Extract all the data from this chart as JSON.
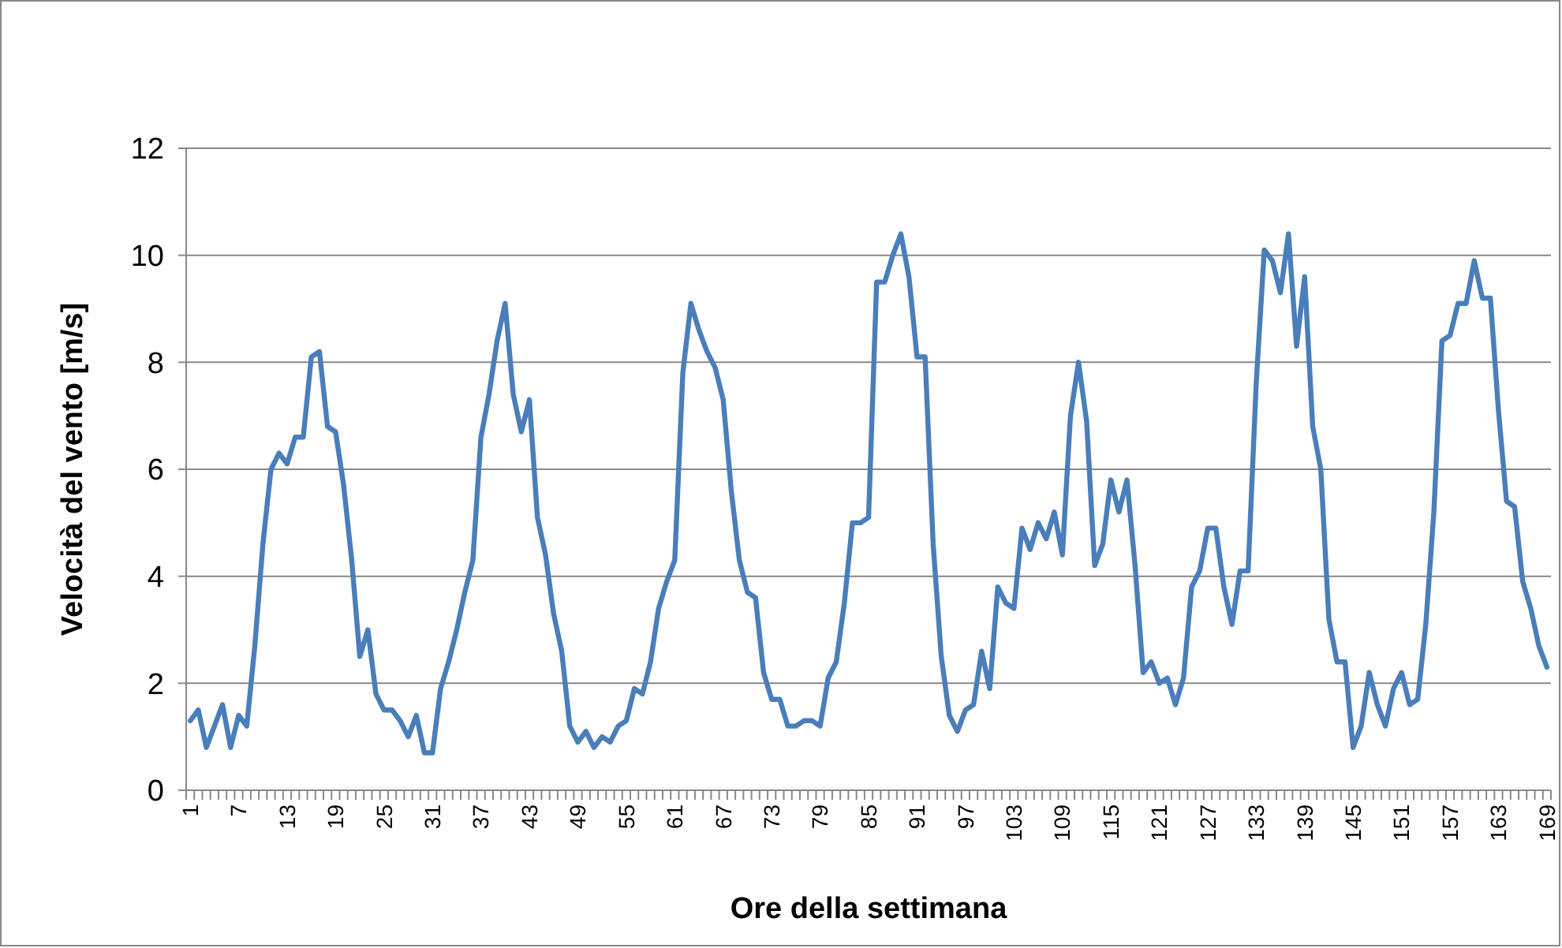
{
  "chart_data": {
    "type": "line",
    "xlabel": "Ore della settimana",
    "ylabel": "Velocità del vento [m/s]",
    "categories": [
      "1",
      null,
      null,
      null,
      null,
      null,
      "7",
      null,
      null,
      null,
      null,
      null,
      "13",
      null,
      null,
      null,
      null,
      null,
      "19",
      null,
      null,
      null,
      null,
      null,
      "25",
      null,
      null,
      null,
      null,
      null,
      "31",
      null,
      null,
      null,
      null,
      null,
      "37",
      null,
      null,
      null,
      null,
      null,
      "43",
      null,
      null,
      null,
      null,
      null,
      "49",
      null,
      null,
      null,
      null,
      null,
      "55",
      null,
      null,
      null,
      null,
      null,
      "61",
      null,
      null,
      null,
      null,
      null,
      "67",
      null,
      null,
      null,
      null,
      null,
      "73",
      null,
      null,
      null,
      null,
      null,
      "79",
      null,
      null,
      null,
      null,
      null,
      "85",
      null,
      null,
      null,
      null,
      null,
      "91",
      null,
      null,
      null,
      null,
      null,
      "97",
      null,
      null,
      null,
      null,
      null,
      "103",
      null,
      null,
      null,
      null,
      null,
      "109",
      null,
      null,
      null,
      null,
      null,
      "115",
      null,
      null,
      null,
      null,
      null,
      "121",
      null,
      null,
      null,
      null,
      null,
      "127",
      null,
      null,
      null,
      null,
      null,
      "133",
      null,
      null,
      null,
      null,
      null,
      "139",
      null,
      null,
      null,
      null,
      null,
      "145",
      null,
      null,
      null,
      null,
      null,
      "151",
      null,
      null,
      null,
      null,
      null,
      "157",
      null,
      null,
      null,
      null,
      null,
      "163",
      null,
      null,
      null,
      null,
      null,
      "169"
    ],
    "series": [
      {
        "color": "#4a7ebb",
        "values": [
          1.3,
          1.5,
          0.8,
          1.2,
          1.6,
          0.8,
          1.4,
          1.2,
          2.7,
          4.6,
          6.0,
          6.3,
          6.1,
          6.6,
          6.6,
          8.1,
          8.2,
          6.8,
          6.7,
          5.7,
          4.3,
          2.5,
          3.0,
          1.8,
          1.5,
          1.5,
          1.3,
          1.0,
          1.4,
          0.7,
          0.7,
          1.9,
          2.4,
          3.0,
          3.7,
          4.3,
          6.6,
          7.4,
          8.4,
          9.1,
          7.4,
          6.7,
          7.3,
          5.1,
          4.4,
          3.3,
          2.6,
          1.2,
          0.9,
          1.1,
          0.8,
          1.0,
          0.9,
          1.2,
          1.3,
          1.9,
          1.8,
          2.4,
          3.4,
          3.9,
          4.3,
          7.8,
          9.1,
          8.6,
          8.2,
          7.9,
          7.3,
          5.6,
          4.3,
          3.7,
          3.6,
          2.2,
          1.7,
          1.7,
          1.2,
          1.2,
          1.3,
          1.3,
          1.2,
          2.1,
          2.4,
          3.5,
          5.0,
          5.0,
          5.1,
          9.5,
          9.5,
          10.0,
          10.4,
          9.6,
          8.1,
          8.1,
          4.6,
          2.5,
          1.4,
          1.1,
          1.5,
          1.6,
          2.6,
          1.9,
          3.8,
          3.5,
          3.4,
          4.9,
          4.5,
          5.0,
          4.7,
          5.2,
          4.4,
          7.0,
          8.0,
          6.9,
          4.2,
          4.6,
          5.8,
          5.2,
          5.8,
          4.2,
          2.2,
          2.4,
          2.0,
          2.1,
          1.6,
          2.1,
          3.8,
          4.1,
          4.9,
          4.9,
          3.8,
          3.1,
          4.1,
          4.1,
          7.6,
          10.1,
          9.9,
          9.3,
          10.4,
          8.3,
          9.6,
          6.8,
          6.0,
          3.2,
          2.4,
          2.4,
          0.8,
          1.2,
          2.2,
          1.6,
          1.2,
          1.9,
          2.2,
          1.6,
          1.7,
          3.1,
          5.2,
          8.4,
          8.5,
          9.1,
          9.1,
          9.9,
          9.2,
          9.2,
          7.1,
          5.4,
          5.3,
          3.9,
          3.4,
          2.7,
          2.3
        ]
      }
    ],
    "ylim": [
      0,
      12
    ],
    "yticks": [
      0,
      2,
      4,
      6,
      8,
      10,
      12
    ],
    "grid": "y",
    "marker": "none",
    "line_style": "solid"
  }
}
